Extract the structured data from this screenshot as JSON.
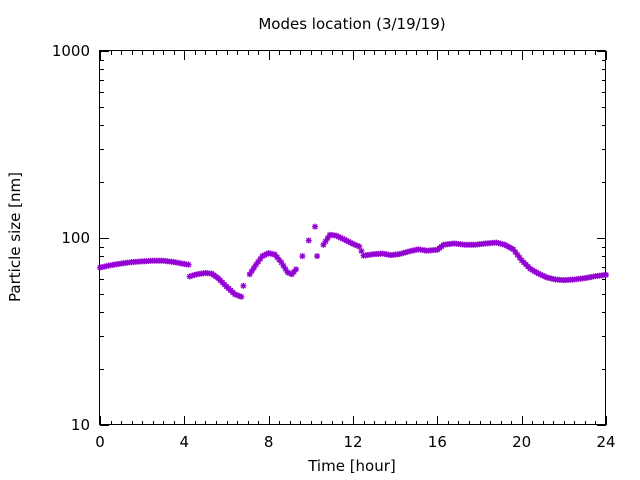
{
  "chart_data": {
    "type": "scatter",
    "title": "Modes location (3/19/19)",
    "xlabel": "Time [hour]",
    "ylabel": "Particle size [nm]",
    "xlim": [
      0,
      24
    ],
    "ylim": [
      10,
      1000
    ],
    "y_scale": "log",
    "grid": false,
    "x_ticks": [
      0,
      4,
      8,
      12,
      16,
      20,
      24
    ],
    "x_tick_labels": [
      "0",
      "4",
      "8",
      "12",
      "16",
      "20",
      "24"
    ],
    "y_ticks": [
      10,
      100,
      1000
    ],
    "y_tick_labels": [
      "10",
      "100",
      "1000"
    ],
    "marker_color": "#9400d3",
    "series": [
      {
        "points": [
          [
            0.0,
            69.5
          ],
          [
            0.5,
            71.5
          ],
          [
            1.0,
            73.0
          ],
          [
            1.5,
            74.3
          ],
          [
            2.0,
            75.0
          ],
          [
            2.5,
            75.6
          ],
          [
            3.0,
            75.6
          ],
          [
            3.5,
            74.4
          ],
          [
            4.0,
            72.6
          ],
          [
            4.2,
            72.0
          ],
          [
            4.25,
            62.3
          ],
          [
            4.6,
            64.0
          ],
          [
            5.0,
            65.0
          ],
          [
            5.3,
            64.5
          ],
          [
            5.6,
            61.0
          ],
          [
            6.0,
            55.0
          ],
          [
            6.4,
            50.0
          ],
          [
            6.7,
            48.5
          ],
          [
            6.8,
            55.5
          ],
          [
            7.1,
            64.0
          ],
          [
            7.4,
            72.0
          ],
          [
            7.7,
            80.0
          ],
          [
            8.0,
            83.0
          ],
          [
            8.3,
            81.5
          ],
          [
            8.6,
            74.0
          ],
          [
            8.9,
            65.5
          ],
          [
            9.1,
            64.0
          ],
          [
            9.3,
            68.0
          ],
          [
            9.6,
            80.0
          ],
          [
            9.9,
            97.0
          ],
          [
            10.2,
            115.0
          ],
          [
            10.3,
            80.0
          ],
          [
            10.6,
            92.0
          ],
          [
            10.9,
            104.0
          ],
          [
            11.2,
            103.0
          ],
          [
            11.6,
            98.0
          ],
          [
            12.0,
            93.0
          ],
          [
            12.3,
            90.0
          ],
          [
            12.5,
            80.5
          ],
          [
            13.0,
            82.0
          ],
          [
            13.4,
            82.5
          ],
          [
            13.8,
            81.0
          ],
          [
            14.2,
            82.0
          ],
          [
            14.7,
            85.0
          ],
          [
            15.1,
            87.0
          ],
          [
            15.5,
            85.5
          ],
          [
            16.0,
            86.5
          ],
          [
            16.3,
            92.0
          ],
          [
            16.8,
            93.5
          ],
          [
            17.3,
            92.0
          ],
          [
            17.8,
            92.0
          ],
          [
            18.3,
            93.5
          ],
          [
            18.8,
            94.5
          ],
          [
            19.2,
            92.0
          ],
          [
            19.6,
            87.0
          ],
          [
            20.0,
            76.0
          ],
          [
            20.4,
            68.5
          ],
          [
            20.8,
            64.5
          ],
          [
            21.2,
            61.5
          ],
          [
            21.6,
            60.0
          ],
          [
            22.0,
            59.5
          ],
          [
            22.5,
            60.0
          ],
          [
            23.0,
            61.0
          ],
          [
            23.5,
            62.5
          ],
          [
            24.0,
            63.5
          ]
        ]
      }
    ]
  }
}
